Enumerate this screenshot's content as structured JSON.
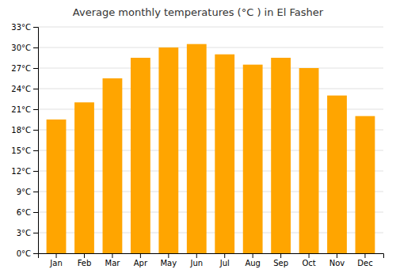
{
  "chart_data": {
    "type": "bar",
    "title": "Average monthly temperatures (°C ) in El Fasher",
    "categories": [
      "Jan",
      "Feb",
      "Mar",
      "Apr",
      "May",
      "Jun",
      "Jul",
      "Aug",
      "Sep",
      "Oct",
      "Nov",
      "Dec"
    ],
    "values": [
      19.5,
      22.0,
      25.5,
      28.5,
      30.0,
      30.5,
      29.0,
      27.5,
      28.5,
      27.0,
      23.0,
      20.0
    ],
    "color": "#FFA500",
    "ylim": [
      0,
      33
    ],
    "yticks": [
      {
        "value": 0,
        "label": "0°C"
      },
      {
        "value": 3,
        "label": "3°C"
      },
      {
        "value": 6,
        "label": "6°C"
      },
      {
        "value": 9,
        "label": "9°C"
      },
      {
        "value": 12,
        "label": "12°C"
      },
      {
        "value": 15,
        "label": "15°C"
      },
      {
        "value": 18,
        "label": "18°C"
      },
      {
        "value": 21,
        "label": "21°C"
      },
      {
        "value": 24,
        "label": "24°C"
      },
      {
        "value": 27,
        "label": "27°C"
      },
      {
        "value": 30,
        "label": "30°C"
      },
      {
        "value": 33,
        "label": "33°C"
      }
    ],
    "grid": true
  }
}
